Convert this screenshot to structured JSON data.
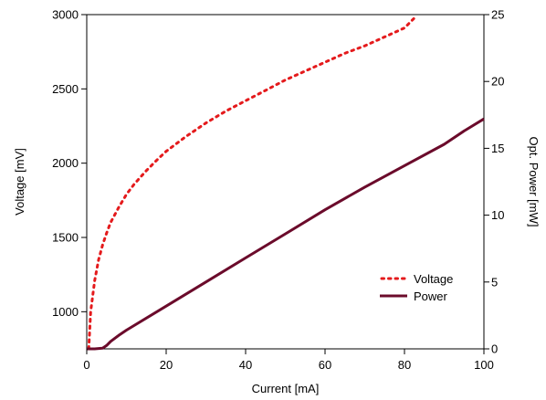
{
  "chart_data": {
    "type": "line",
    "xlabel": "Current [mA]",
    "ylabel_left": "Voltage [mV]",
    "ylabel_right": "Opt. Power [mW]",
    "xlim": [
      0,
      100
    ],
    "ylim_left": [
      750,
      3000
    ],
    "ylim_right": [
      0,
      25
    ],
    "x_ticks": [
      0,
      20,
      40,
      60,
      80,
      100
    ],
    "y_left_ticks": [
      1000,
      1500,
      2000,
      2500,
      3000
    ],
    "y_right_ticks": [
      0,
      5,
      10,
      15,
      20,
      25
    ],
    "grid": false,
    "legend_position": "bottom-right",
    "series": [
      {
        "name": "Voltage",
        "axis": "left",
        "color": "#e41a1c",
        "style": "dotted",
        "x": [
          0.5,
          1,
          2,
          3,
          4,
          5,
          6,
          8,
          10,
          12,
          15,
          18,
          20,
          25,
          30,
          35,
          40,
          45,
          50,
          55,
          60,
          65,
          70,
          75,
          80,
          83
        ],
        "y": [
          750,
          1000,
          1210,
          1350,
          1450,
          1530,
          1600,
          1700,
          1790,
          1860,
          1950,
          2030,
          2080,
          2180,
          2270,
          2350,
          2420,
          2490,
          2560,
          2620,
          2680,
          2740,
          2790,
          2850,
          2910,
          2990
        ]
      },
      {
        "name": "Power",
        "axis": "right",
        "color": "#6b0b2b",
        "style": "solid",
        "x": [
          0,
          2,
          4,
          5,
          6,
          8,
          10,
          20,
          30,
          40,
          50,
          60,
          70,
          80,
          90,
          95,
          100
        ],
        "y": [
          0,
          0,
          0.05,
          0.25,
          0.55,
          1.0,
          1.4,
          3.2,
          5.0,
          6.8,
          8.6,
          10.4,
          12.1,
          13.7,
          15.3,
          16.3,
          17.2
        ]
      }
    ]
  }
}
